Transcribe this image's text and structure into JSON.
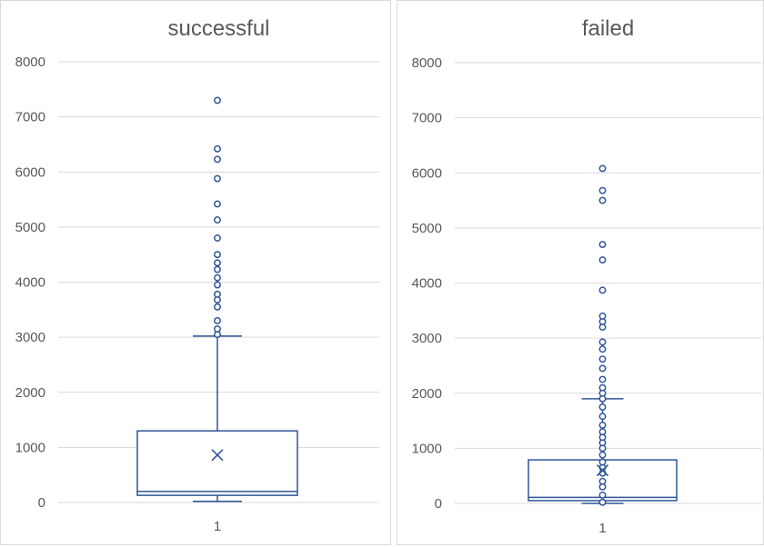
{
  "chart_data": [
    {
      "type": "box",
      "title": "successful",
      "xlabel": "",
      "ylabel": "",
      "categories": [
        "1"
      ],
      "ylim": [
        0,
        8000
      ],
      "yticks": [
        0,
        1000,
        2000,
        3000,
        4000,
        5000,
        6000,
        7000,
        8000
      ],
      "grid": true,
      "color": "#2f5597",
      "box": {
        "min": 20,
        "q1": 130,
        "median": 200,
        "q3": 1300,
        "max": 3020,
        "mean": 860
      },
      "outliers": [
        3050,
        3150,
        3300,
        3550,
        3680,
        3780,
        3950,
        4080,
        4230,
        4350,
        4500,
        4800,
        5130,
        5420,
        5880,
        6230,
        6420,
        7300
      ]
    },
    {
      "type": "box",
      "title": "failed",
      "xlabel": "",
      "ylabel": "",
      "categories": [
        "1"
      ],
      "ylim": [
        0,
        8000
      ],
      "yticks": [
        0,
        1000,
        2000,
        3000,
        4000,
        5000,
        6000,
        7000,
        8000
      ],
      "grid": true,
      "color": "#2f5597",
      "box": {
        "min": 0,
        "q1": 50,
        "median": 110,
        "q3": 790,
        "max": 1900,
        "mean": 600
      },
      "outliers": [
        20,
        150,
        300,
        400,
        550,
        650,
        750,
        880,
        1000,
        1100,
        1200,
        1300,
        1420,
        1580,
        1750,
        1900,
        2000,
        2100,
        2250,
        2450,
        2620,
        2800,
        2930,
        3200,
        3300,
        3400,
        3870,
        4420,
        4700,
        5500,
        5680,
        6080
      ]
    }
  ]
}
